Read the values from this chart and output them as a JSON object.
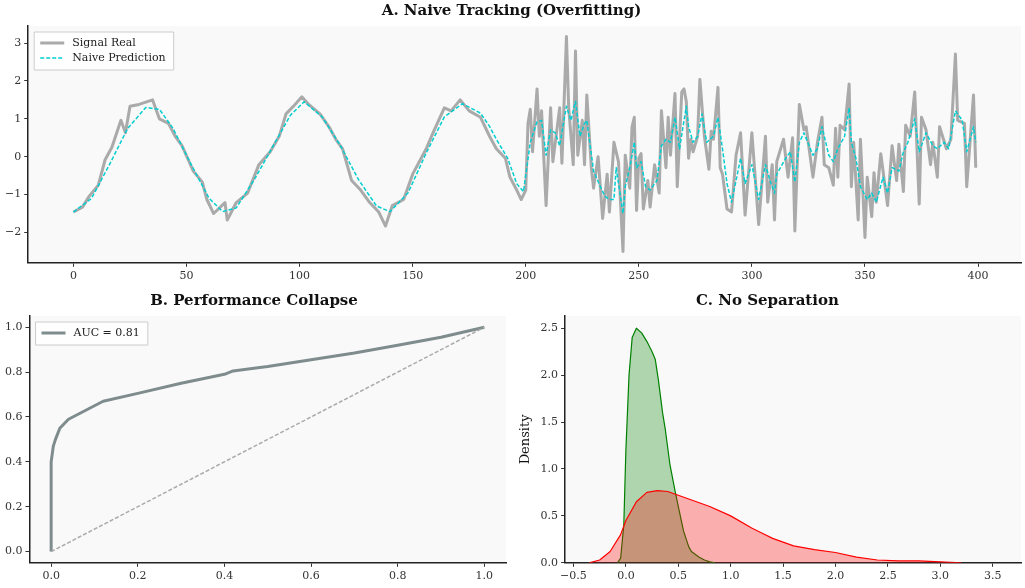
{
  "chart_data": [
    {
      "type": "line",
      "title": "A. Naive Tracking (Overfitting)",
      "xlim": [
        -20,
        419
      ],
      "ylim": [
        -2.8,
        3.45
      ],
      "xticks": [
        0,
        50,
        100,
        150,
        200,
        250,
        300,
        350,
        400
      ],
      "yticks": [
        {
          "value": -2,
          "label": "−2"
        },
        {
          "value": -1,
          "label": "−1"
        },
        0,
        1,
        2,
        3
      ],
      "legend": "top left",
      "series": [
        {
          "name": "Signal Real",
          "color": "#aaaaaa",
          "line_style": "solid",
          "x": [
            0,
            4,
            7,
            11,
            14,
            17,
            21,
            23,
            25,
            29,
            35,
            38,
            42,
            45,
            48,
            53,
            57,
            59,
            62,
            67,
            68,
            72,
            77,
            82,
            87,
            91,
            94,
            98,
            101,
            104,
            109,
            113,
            116,
            119,
            123,
            127,
            131,
            135,
            138,
            141,
            146,
            150,
            156,
            159,
            164,
            167,
            171,
            175,
            180,
            184,
            187,
            191,
            193,
            196,
            198,
            200,
            201,
            202,
            203,
            205,
            206,
            207,
            209,
            211,
            212,
            215,
            216,
            218,
            219,
            221,
            222,
            223,
            225,
            226,
            227,
            229,
            230,
            232,
            234,
            236,
            237,
            239,
            241,
            243,
            244,
            246,
            247,
            248,
            249,
            250,
            251,
            252,
            254,
            255,
            257,
            259,
            260,
            262,
            263,
            264,
            266,
            267,
            269,
            270,
            271,
            272,
            273,
            274,
            276,
            277,
            279,
            281,
            282,
            283,
            285,
            286,
            287,
            289,
            291,
            293,
            295,
            297,
            300,
            303,
            306,
            307,
            309,
            310,
            311,
            314,
            316,
            318,
            319,
            321,
            323,
            324,
            327,
            329,
            331,
            332,
            334,
            336,
            337,
            338,
            339,
            341,
            343,
            344,
            345,
            347,
            348,
            350,
            351,
            353,
            354,
            355,
            357,
            360,
            362,
            364,
            365,
            367,
            368,
            370,
            372,
            374,
            375,
            377,
            379,
            380,
            382,
            383,
            386,
            388,
            390,
            391,
            394,
            395,
            398,
            399
          ],
          "values": [
            -1.46,
            -1.33,
            -1.04,
            -0.75,
            -0.08,
            0.25,
            0.96,
            0.63,
            1.33,
            1.38,
            1.5,
            1.0,
            0.88,
            0.54,
            0.29,
            -0.38,
            -0.67,
            -1.13,
            -1.5,
            -1.21,
            -1.67,
            -1.21,
            -0.96,
            -0.21,
            0.13,
            0.54,
            1.13,
            1.38,
            1.58,
            1.38,
            1.13,
            0.79,
            0.46,
            0.21,
            -0.63,
            -0.88,
            -1.21,
            -1.46,
            -1.83,
            -1.29,
            -1.13,
            -0.46,
            0.21,
            0.63,
            1.29,
            1.21,
            1.5,
            1.21,
            1.04,
            0.54,
            0.21,
            -0.04,
            -0.54,
            -0.88,
            -1.13,
            -0.88,
            0.88,
            1.25,
            0.13,
            1.79,
            0.54,
            1.21,
            -1.29,
            1.29,
            -0.13,
            1.29,
            -0.17,
            3.17,
            1.29,
            -0.21,
            2.79,
            0.04,
            0.96,
            -0.21,
            1.63,
            -0.29,
            -0.83,
            0.0,
            -1.63,
            -0.46,
            -1.46,
            0.38,
            -0.13,
            -2.5,
            0.04,
            -0.83,
            0.79,
            1.04,
            -1.42,
            -0.04,
            0.08,
            -1.38,
            -0.63,
            -1.33,
            -0.21,
            -0.96,
            1.21,
            -0.29,
            1.04,
            0.04,
            1.67,
            -0.79,
            1.71,
            1.79,
            1.46,
            -0.04,
            0.46,
            0.13,
            0.54,
            2.04,
            0.54,
            -0.33,
            0.67,
            0.46,
            1.83,
            -0.29,
            -0.46,
            -1.38,
            -1.46,
            0.04,
            0.63,
            -1.54,
            0.63,
            -1.79,
            0.54,
            -1.2,
            -0.21,
            -1.67,
            -0.13,
            0.46,
            -0.54,
            0.5,
            -1.96,
            1.38,
            0.71,
            0.79,
            -0.54,
            0.38,
            1.04,
            -0.21,
            -0.29,
            -0.75,
            0.75,
            -0.54,
            0.83,
            0.71,
            1.92,
            -0.79,
            0.38,
            -1.67,
            0.46,
            -2.13,
            -0.54,
            -1.58,
            -0.42,
            -1.2,
            0.08,
            -1.29,
            0.29,
            -0.63,
            0.33,
            -0.92,
            0.83,
            0.54,
            1.71,
            -1.25,
            1.04,
            0.71,
            -0.21,
            0.38,
            -0.54,
            0.79,
            0.21,
            0.46,
            2.71,
            0.96,
            0.88,
            -0.79,
            1.63,
            -0.29
          ]
        },
        {
          "name": "Naive Prediction",
          "color": "#00ced1",
          "line_style": "dashed",
          "x": [
            0,
            8,
            16,
            24,
            32,
            38,
            44,
            52,
            60,
            66,
            72,
            80,
            88,
            96,
            102,
            110,
            118,
            126,
            134,
            140,
            148,
            156,
            164,
            172,
            180,
            184,
            187,
            192,
            196,
            199,
            202,
            205,
            207,
            209,
            211,
            213,
            215,
            218,
            220,
            222,
            224,
            226,
            227,
            230,
            233,
            235,
            237,
            239,
            240,
            243,
            244,
            246,
            248,
            249,
            251,
            253,
            255,
            258,
            260,
            262,
            264,
            266,
            268,
            271,
            272,
            274,
            276,
            278,
            280,
            283,
            285,
            287,
            289,
            291,
            293,
            295,
            297,
            300,
            303,
            306,
            308,
            310,
            311,
            315,
            317,
            319,
            321,
            323,
            327,
            329,
            331,
            334,
            336,
            338,
            341,
            343,
            344,
            346,
            348,
            351,
            353,
            355,
            358,
            360,
            362,
            365,
            367,
            369,
            372,
            374,
            377,
            380,
            382,
            385,
            387,
            390,
            393,
            395,
            398,
            399
          ],
          "values": [
            -1.46,
            -1.1,
            -0.2,
            0.75,
            1.3,
            1.25,
            0.75,
            -0.2,
            -1.1,
            -1.45,
            -1.35,
            -0.6,
            0.25,
            1.1,
            1.45,
            1.05,
            0.3,
            -0.6,
            -1.3,
            -1.45,
            -0.95,
            0.1,
            1.05,
            1.4,
            1.15,
            0.8,
            0.46,
            -0.04,
            -0.71,
            -0.92,
            0.38,
            0.92,
            0.96,
            0.04,
            0.71,
            0.63,
            0.29,
            1.33,
            0.96,
            1.46,
            0.54,
            0.88,
            0.96,
            -0.38,
            -0.79,
            -1.04,
            -1.13,
            -1.13,
            -0.29,
            -1.5,
            -0.79,
            -0.29,
            0.38,
            -0.29,
            -0.13,
            -0.79,
            -0.88,
            -0.63,
            0.29,
            0.46,
            0.38,
            1.04,
            0.21,
            1.33,
            0.79,
            0.38,
            0.54,
            1.13,
            0.38,
            0.54,
            1.04,
            0.21,
            -0.71,
            -1.2,
            -0.63,
            -0.04,
            -0.71,
            -0.21,
            -1.13,
            -0.21,
            -0.63,
            -0.96,
            -0.46,
            -0.04,
            0.13,
            -0.67,
            0.38,
            0.63,
            0.04,
            0.21,
            0.79,
            0.04,
            -0.13,
            0.21,
            0.54,
            1.29,
            0.38,
            -0.04,
            -0.79,
            -1.13,
            -0.96,
            -1.2,
            -0.54,
            -0.96,
            -0.29,
            -0.38,
            0.13,
            0.38,
            1.0,
            0.13,
            0.63,
            0.29,
            0.21,
            0.38,
            0.21,
            1.21,
            0.96,
            0.13,
            0.79,
            0.38
          ]
        }
      ]
    },
    {
      "type": "line",
      "title": "B. Performance Collapse",
      "xlim": [
        -0.05,
        1.05
      ],
      "ylim": [
        -0.05,
        1.05
      ],
      "xticks": [
        {
          "value": 0,
          "label": "0.0"
        },
        0.2,
        0.4,
        0.6,
        0.8,
        {
          "value": 1,
          "label": "1.0"
        }
      ],
      "yticks": [
        {
          "value": 0,
          "label": "0.0"
        },
        0.2,
        0.4,
        0.6,
        0.8,
        {
          "value": 1,
          "label": "1.0"
        }
      ],
      "legend": "top left",
      "series": [
        {
          "name": "AUC = 0.81",
          "color": "#7f8c8d",
          "line_style": "solid",
          "x": [
            0,
            0,
            0.005,
            0.01,
            0.02,
            0.04,
            0.06,
            0.1,
            0.12,
            0.2,
            0.3,
            0.4,
            0.42,
            0.5,
            0.6,
            0.7,
            0.8,
            0.9,
            1
          ],
          "values": [
            0,
            0.4,
            0.47,
            0.5,
            0.55,
            0.59,
            0.61,
            0.65,
            0.67,
            0.705,
            0.75,
            0.79,
            0.805,
            0.825,
            0.855,
            0.885,
            0.92,
            0.955,
            1
          ]
        },
        {
          "color": "#aaaaaa",
          "line_style": "dashed",
          "x": [
            0,
            1
          ],
          "values": [
            0,
            1
          ]
        }
      ]
    },
    {
      "type": "area",
      "title": "C. No Separation",
      "ylabel": "Density",
      "xlim": [
        -0.58,
        3.77
      ],
      "ylim": [
        0,
        2.63
      ],
      "xticks": [
        {
          "value": -0.5,
          "label": "−0.5"
        },
        {
          "value": 0,
          "label": "0.0"
        },
        0.5,
        {
          "value": 1,
          "label": "1.0"
        },
        1.5,
        {
          "value": 2,
          "label": "2.0"
        },
        2.5,
        {
          "value": 3,
          "label": "3.0"
        },
        3.5
      ],
      "yticks": [
        {
          "value": 0,
          "label": "0.0"
        },
        0.5,
        {
          "value": 1,
          "label": "1.0"
        },
        1.5,
        {
          "value": 2,
          "label": "2.0"
        },
        2.5
      ],
      "series": [
        {
          "color": "#008000",
          "x": [
            -0.08,
            -0.05,
            -0.02,
            0.0,
            0.03,
            0.06,
            0.1,
            0.15,
            0.2,
            0.25,
            0.28,
            0.31,
            0.35,
            0.375,
            0.42,
            0.47,
            0.5,
            0.55,
            0.6,
            0.625,
            0.7,
            0.75,
            0.8,
            0.85
          ],
          "values": [
            0,
            0.05,
            0.4,
            1.2,
            2.0,
            2.4,
            2.5,
            2.45,
            2.36,
            2.25,
            2.17,
            1.95,
            1.6,
            1.43,
            1.05,
            0.76,
            0.6,
            0.34,
            0.17,
            0.12,
            0.06,
            0.03,
            0.01,
            0
          ]
        },
        {
          "color": "#ff0000",
          "x": [
            -0.35,
            -0.25,
            -0.15,
            -0.05,
            0.0,
            0.1,
            0.2,
            0.3,
            0.4,
            0.5,
            0.6,
            0.8,
            1.0,
            1.2,
            1.4,
            1.6,
            1.8,
            2.0,
            2.2,
            2.4,
            2.6,
            2.8,
            3.0,
            3.2
          ],
          "values": [
            0,
            0.03,
            0.12,
            0.3,
            0.45,
            0.65,
            0.75,
            0.77,
            0.76,
            0.72,
            0.68,
            0.6,
            0.5,
            0.37,
            0.26,
            0.18,
            0.14,
            0.11,
            0.06,
            0.03,
            0.02,
            0.02,
            0.01,
            0
          ]
        }
      ]
    }
  ]
}
